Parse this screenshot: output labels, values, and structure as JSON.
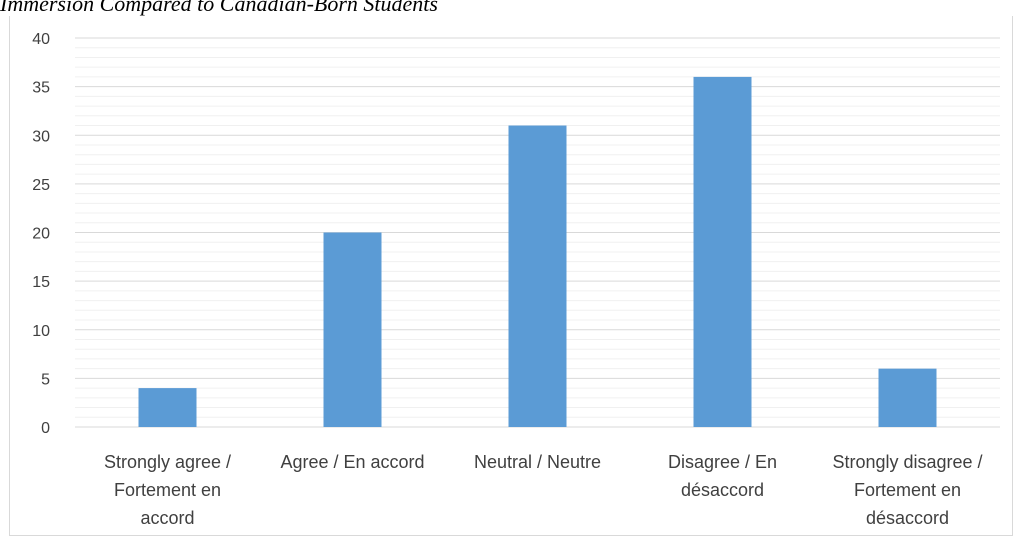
{
  "caption": "Immersion Compared to Canadian-Born Students",
  "chart_data": {
    "type": "bar",
    "categories": [
      [
        "Strongly agree /",
        "Fortement en",
        "accord"
      ],
      [
        "Agree / En accord"
      ],
      [
        "Neutral / Neutre"
      ],
      [
        "Disagree / En",
        "désaccord"
      ],
      [
        "Strongly disagree /",
        "Fortement en",
        "désaccord"
      ]
    ],
    "values": [
      4,
      20,
      31,
      36,
      6
    ],
    "ylim": [
      0,
      40
    ],
    "yticks": [
      0,
      5,
      10,
      15,
      20,
      25,
      30,
      35,
      40
    ],
    "minor_step": 1,
    "grid": true,
    "bar_color": "#5b9bd5",
    "major_grid_color": "#d9d9d9",
    "minor_grid_color": "#f0f0f0"
  }
}
